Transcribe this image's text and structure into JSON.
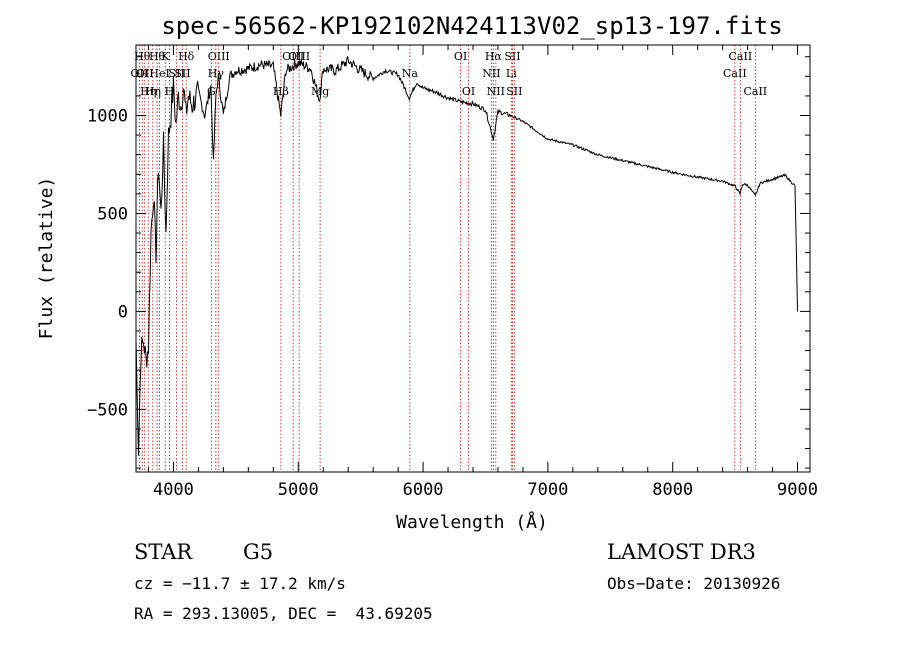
{
  "chart_data": {
    "type": "line",
    "title": "spec-56562-KP192102N424113V02_sp13-197.fits",
    "xlabel": "Wavelength (Å)",
    "ylabel": "Flux (relative)",
    "xlim": [
      3700,
      9100
    ],
    "ylim": [
      -820,
      1360
    ],
    "xticks": [
      4000,
      5000,
      6000,
      7000,
      8000,
      9000
    ],
    "yticks": [
      -500,
      0,
      500,
      1000
    ],
    "series": [
      {
        "name": "flux",
        "x": [
          3700,
          3720,
          3740,
          3760,
          3780,
          3800,
          3820,
          3840,
          3860,
          3880,
          3900,
          3920,
          3940,
          3960,
          3980,
          4000,
          4020,
          4040,
          4060,
          4080,
          4100,
          4120,
          4150,
          4200,
          4250,
          4300,
          4320,
          4340,
          4360,
          4400,
          4450,
          4500,
          4600,
          4700,
          4800,
          4860,
          4900,
          5000,
          5100,
          5170,
          5200,
          5300,
          5400,
          5500,
          5600,
          5700,
          5800,
          5890,
          5950,
          6000,
          6100,
          6200,
          6300,
          6400,
          6500,
          6563,
          6600,
          6700,
          6800,
          7000,
          7200,
          7400,
          7600,
          7800,
          8000,
          8200,
          8400,
          8500,
          8540,
          8560,
          8600,
          8662,
          8700,
          8800,
          8900,
          8980,
          9000
        ],
        "y": [
          -150,
          -700,
          -200,
          -150,
          -250,
          -180,
          400,
          600,
          300,
          750,
          500,
          850,
          400,
          900,
          1000,
          1150,
          950,
          1100,
          1050,
          1150,
          1000,
          1100,
          1050,
          1120,
          1000,
          1150,
          750,
          1100,
          1200,
          1000,
          1200,
          1230,
          1240,
          1260,
          1250,
          1000,
          1230,
          1270,
          1240,
          1080,
          1240,
          1230,
          1280,
          1230,
          1190,
          1230,
          1210,
          1090,
          1170,
          1140,
          1120,
          1090,
          1070,
          1060,
          1030,
          880,
          1020,
          1000,
          970,
          880,
          850,
          800,
          770,
          740,
          710,
          685,
          665,
          640,
          600,
          650,
          645,
          590,
          655,
          675,
          695,
          640,
          0
        ]
      }
    ],
    "lines": [
      {
        "wl": 3727,
        "label": "OII",
        "row": 2
      },
      {
        "wl": 3750,
        "label": "Hθ",
        "row": 1
      },
      {
        "wl": 3770,
        "label": "OII",
        "row": 2
      },
      {
        "wl": 3798,
        "label": "Hη",
        "row": 3
      },
      {
        "wl": 3835,
        "label": "Hη",
        "row": 3
      },
      {
        "wl": 3869,
        "label": "Hθ",
        "row": 1
      },
      {
        "wl": 3889,
        "label": "HeI",
        "row": 2
      },
      {
        "wl": 3934,
        "label": "K",
        "row": 1
      },
      {
        "wl": 3968,
        "label": "H",
        "row": 3
      },
      {
        "wl": 4026,
        "label": "SII",
        "row": 2
      },
      {
        "wl": 4072,
        "label": "SII",
        "row": 2
      },
      {
        "wl": 4102,
        "label": "Hδ",
        "row": 1
      },
      {
        "wl": 4304,
        "label": "G",
        "row": 3
      },
      {
        "wl": 4340,
        "label": "Hγ",
        "row": 2
      },
      {
        "wl": 4363,
        "label": "OIII",
        "row": 1
      },
      {
        "wl": 4861,
        "label": "Hβ",
        "row": 3
      },
      {
        "wl": 4959,
        "label": "OIII",
        "row": 1
      },
      {
        "wl": 5007,
        "label": "OIII",
        "row": 1
      },
      {
        "wl": 5175,
        "label": "Mg",
        "row": 3
      },
      {
        "wl": 5894,
        "label": "Na",
        "row": 2
      },
      {
        "wl": 6300,
        "label": "OI",
        "row": 1
      },
      {
        "wl": 6364,
        "label": "OI",
        "row": 3
      },
      {
        "wl": 6548,
        "label": "NII",
        "row": 2
      },
      {
        "wl": 6563,
        "label": "Hα",
        "row": 1
      },
      {
        "wl": 6583,
        "label": "NII",
        "row": 3
      },
      {
        "wl": 6707,
        "label": "Li",
        "row": 2
      },
      {
        "wl": 6716,
        "label": "SII",
        "row": 1
      },
      {
        "wl": 6731,
        "label": "SII",
        "row": 3
      },
      {
        "wl": 8498,
        "label": "CaII",
        "row": 2
      },
      {
        "wl": 8542,
        "label": "CaII",
        "row": 1
      },
      {
        "wl": 8662,
        "label": "CaII",
        "row": 3
      }
    ]
  },
  "info": {
    "class_label": "STAR",
    "subclass": "G5",
    "survey": "LAMOST DR3",
    "cz": "cz = −11.7 ± 17.2 km/s",
    "obs_date": "Obs−Date: 20130926",
    "coords": "RA = 293.13005, DEC =  43.69205"
  },
  "colors": {
    "line": "#cc0000",
    "spectrum": "#000000"
  }
}
